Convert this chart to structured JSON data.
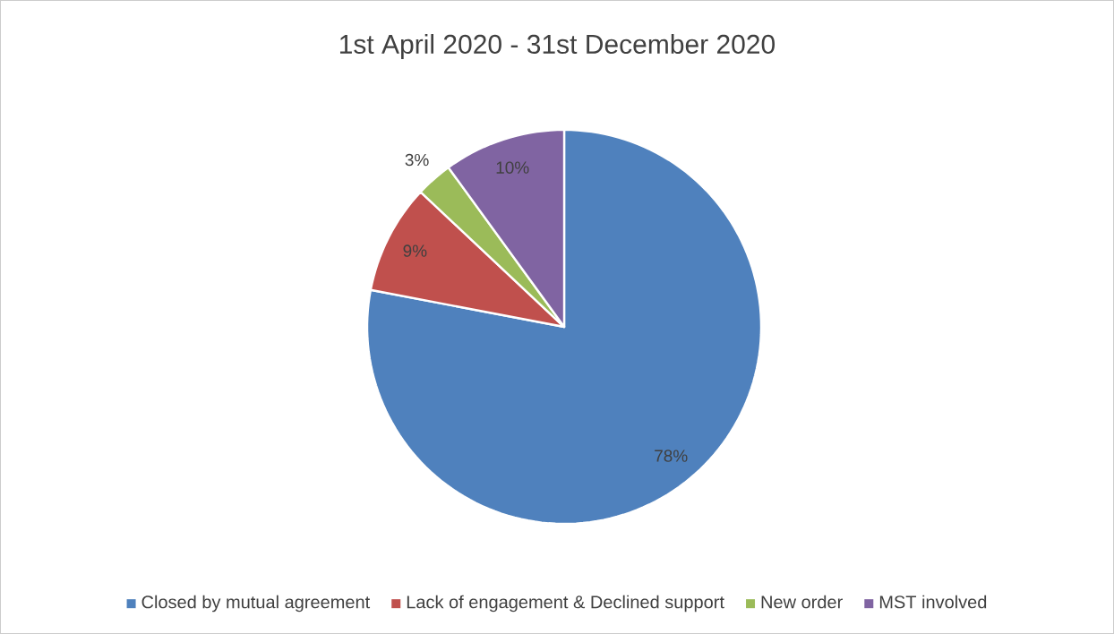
{
  "chart_data": {
    "type": "pie",
    "title": "1st April 2020 - 31st December 2020",
    "categories": [
      "Closed by mutual agreement",
      "Lack of engagement & Declined support",
      "New order",
      "MST involved"
    ],
    "values": [
      78,
      9,
      3,
      10
    ],
    "colors": [
      "#4f81bd",
      "#c0504d",
      "#9bbb59",
      "#8064a2"
    ],
    "value_labels": [
      "78%",
      "9%",
      "3%",
      "10%"
    ],
    "legend": "bottom"
  }
}
